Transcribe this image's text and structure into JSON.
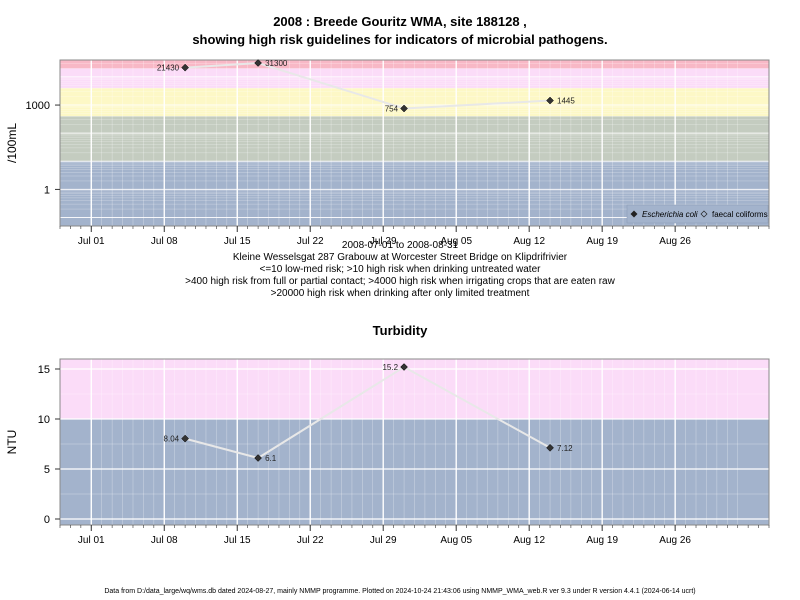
{
  "chart_data": [
    {
      "type": "line",
      "title_line1": "2008 : Breede Gouritz WMA, site 188128 ,",
      "title_line2": "showing high risk guidelines for indicators of microbial pathogens.",
      "ylabel": "/100mL",
      "y_scale": "log",
      "y_ticks": [
        1,
        1000
      ],
      "x_ticks": [
        "Jul 01",
        "Jul 08",
        "Jul 15",
        "Jul 22",
        "Jul 29",
        "Aug 05",
        "Aug 12",
        "Aug 19",
        "Aug 26"
      ],
      "x_tick_dates": [
        "2008-07-01",
        "2008-07-08",
        "2008-07-15",
        "2008-07-22",
        "2008-07-29",
        "2008-08-05",
        "2008-08-12",
        "2008-08-19",
        "2008-08-26"
      ],
      "x_range": [
        "2008-06-28",
        "2008-09-04"
      ],
      "bands": [
        {
          "from": 0.01,
          "to": 10,
          "color": "#a3b3cc"
        },
        {
          "from": 10,
          "to": 400,
          "color": "#c4ccc0"
        },
        {
          "from": 400,
          "to": 4000,
          "color": "#fdf8c6"
        },
        {
          "from": 4000,
          "to": 20000,
          "color": "#fbdcf8"
        },
        {
          "from": 20000,
          "to": 200000,
          "color": "#f8b8c6"
        }
      ],
      "series": [
        {
          "name": "Escherichia coli",
          "marker": "filled-diamond",
          "points": [
            {
              "x": "2008-07-10",
              "y": 21430,
              "label": "21430"
            },
            {
              "x": "2008-07-17",
              "y": 31300,
              "label": "31300"
            },
            {
              "x": "2008-07-31",
              "y": 754,
              "label": "754"
            },
            {
              "x": "2008-08-14",
              "y": 1445,
              "label": "1445"
            }
          ]
        }
      ],
      "legend": {
        "position": "bottom-right",
        "entries": [
          {
            "label": "Escherichia coli",
            "marker": "filled-diamond"
          },
          {
            "label": "faecal coliforms",
            "marker": "open-diamond"
          }
        ]
      },
      "caption": [
        "2008-07-01 to 2008-08-31",
        "Kleine Wesselsgat 287 Grabouw at Worcester Street Bridge on Klipdrifrivier",
        "<=10 low-med risk; >10 high risk when drinking untreated water",
        ">400 high risk from full or partial contact; >4000 high risk when irrigating crops that are eaten raw",
        ">20000 high risk when drinking after only limited treatment"
      ]
    },
    {
      "type": "line",
      "title": "Turbidity",
      "ylabel": "NTU",
      "y_ticks": [
        0,
        5,
        10,
        15
      ],
      "ylim": [
        -0.6,
        16
      ],
      "x_ticks": [
        "Jul 01",
        "Jul 08",
        "Jul 15",
        "Jul 22",
        "Jul 29",
        "Aug 05",
        "Aug 12",
        "Aug 19",
        "Aug 26"
      ],
      "x_tick_dates": [
        "2008-07-01",
        "2008-07-08",
        "2008-07-15",
        "2008-07-22",
        "2008-07-29",
        "2008-08-05",
        "2008-08-12",
        "2008-08-19",
        "2008-08-26"
      ],
      "x_range": [
        "2008-06-28",
        "2008-09-04"
      ],
      "bands": [
        {
          "from": -5,
          "to": 10,
          "color": "#a3b3cc"
        },
        {
          "from": 10,
          "to": 30,
          "color": "#fbdcf8"
        }
      ],
      "series": [
        {
          "name": "Turbidity",
          "marker": "filled-diamond",
          "points": [
            {
              "x": "2008-07-10",
              "y": 8.04,
              "label": "8.04"
            },
            {
              "x": "2008-07-17",
              "y": 6.1,
              "label": "6.1"
            },
            {
              "x": "2008-07-31",
              "y": 15.2,
              "label": "15.2"
            },
            {
              "x": "2008-08-14",
              "y": 7.12,
              "label": "7.12"
            }
          ]
        }
      ]
    }
  ],
  "footer": "Data from D:/data_large/wq/wms.db dated 2024-08-27, mainly NMMP programme. Plotted on 2024-10-24 21:43:06 using NMMP_WMA_web.R ver 9.3 under R version 4.4.1 (2024-06-14 ucrt)"
}
